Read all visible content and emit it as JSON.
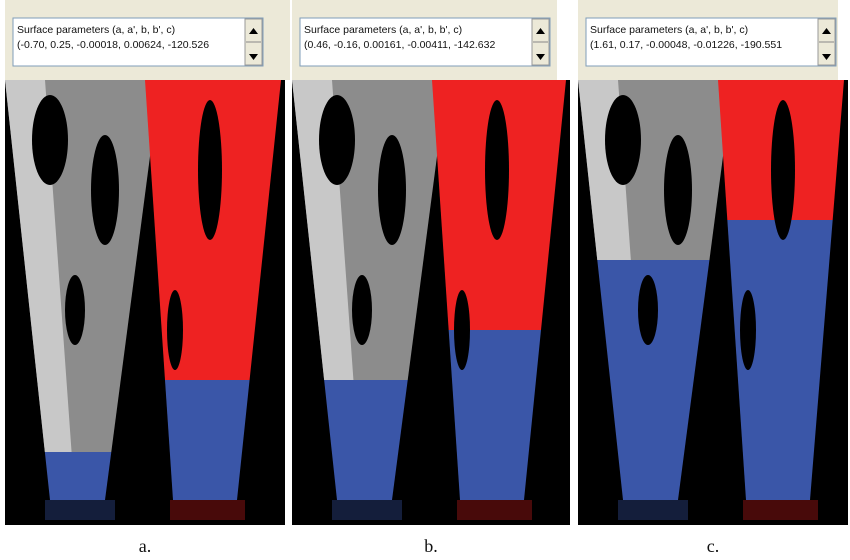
{
  "panels": [
    {
      "box_title": "Surface parameters (a, a', b, b', c)",
      "params": "(-0.70, 0.25, -0.00018, 0.00624, -120.526",
      "caption": "a."
    },
    {
      "box_title": "Surface parameters (a, a', b, b', c)",
      "params": "(0.46, -0.16, 0.00161, -0.00411, -142.632",
      "caption": "b."
    },
    {
      "box_title": "Surface parameters (a, a', b, b', c)",
      "params": "(1.61, 0.17, -0.00048, -0.01226, -190.551",
      "caption": "c."
    }
  ]
}
